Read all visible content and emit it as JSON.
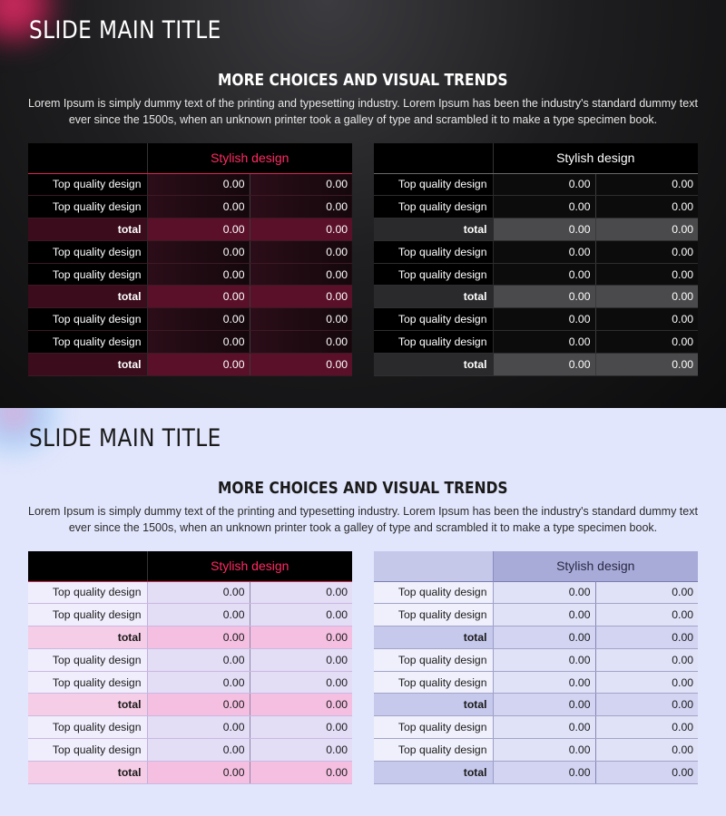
{
  "slides": [
    {
      "theme": "dark",
      "main_title": "SLIDE MAIN TITLE",
      "section_title": "MORE CHOICES AND VISUAL TRENDS",
      "body_text": "Lorem Ipsum is simply dummy text of the printing and typesetting industry. Lorem Ipsum has been the industry's standard dummy text ever since the 1500s, when an unknown printer took a galley of type and scrambled it to make a type specimen book.",
      "tables": [
        {
          "style": "pink",
          "header": "Stylish design",
          "rows": [
            {
              "label": "Top quality design",
              "v1": "0.00",
              "v2": "0.00",
              "total": false
            },
            {
              "label": "Top quality design",
              "v1": "0.00",
              "v2": "0.00",
              "total": false
            },
            {
              "label": "total",
              "v1": "0.00",
              "v2": "0.00",
              "total": true
            },
            {
              "label": "Top quality design",
              "v1": "0.00",
              "v2": "0.00",
              "total": false
            },
            {
              "label": "Top quality design",
              "v1": "0.00",
              "v2": "0.00",
              "total": false
            },
            {
              "label": "total",
              "v1": "0.00",
              "v2": "0.00",
              "total": true
            },
            {
              "label": "Top quality design",
              "v1": "0.00",
              "v2": "0.00",
              "total": false
            },
            {
              "label": "Top quality design",
              "v1": "0.00",
              "v2": "0.00",
              "total": false
            },
            {
              "label": "total",
              "v1": "0.00",
              "v2": "0.00",
              "total": true
            }
          ]
        },
        {
          "style": "gray",
          "header": "Stylish design",
          "rows": [
            {
              "label": "Top quality design",
              "v1": "0.00",
              "v2": "0.00",
              "total": false
            },
            {
              "label": "Top quality design",
              "v1": "0.00",
              "v2": "0.00",
              "total": false
            },
            {
              "label": "total",
              "v1": "0.00",
              "v2": "0.00",
              "total": true
            },
            {
              "label": "Top quality design",
              "v1": "0.00",
              "v2": "0.00",
              "total": false
            },
            {
              "label": "Top quality design",
              "v1": "0.00",
              "v2": "0.00",
              "total": false
            },
            {
              "label": "total",
              "v1": "0.00",
              "v2": "0.00",
              "total": true
            },
            {
              "label": "Top quality design",
              "v1": "0.00",
              "v2": "0.00",
              "total": false
            },
            {
              "label": "Top quality design",
              "v1": "0.00",
              "v2": "0.00",
              "total": false
            },
            {
              "label": "total",
              "v1": "0.00",
              "v2": "0.00",
              "total": true
            }
          ]
        }
      ]
    },
    {
      "theme": "light",
      "main_title": "SLIDE MAIN TITLE",
      "section_title": "MORE CHOICES AND VISUAL TRENDS",
      "body_text": "Lorem Ipsum is simply dummy text of the printing and typesetting industry. Lorem Ipsum has been the industry's standard dummy text ever since the 1500s, when an unknown printer took a galley of type and scrambled it to make a type specimen book.",
      "tables": [
        {
          "style": "pink",
          "header": "Stylish design",
          "rows": [
            {
              "label": "Top quality design",
              "v1": "0.00",
              "v2": "0.00",
              "total": false
            },
            {
              "label": "Top quality design",
              "v1": "0.00",
              "v2": "0.00",
              "total": false
            },
            {
              "label": "total",
              "v1": "0.00",
              "v2": "0.00",
              "total": true
            },
            {
              "label": "Top quality design",
              "v1": "0.00",
              "v2": "0.00",
              "total": false
            },
            {
              "label": "Top quality design",
              "v1": "0.00",
              "v2": "0.00",
              "total": false
            },
            {
              "label": "total",
              "v1": "0.00",
              "v2": "0.00",
              "total": true
            },
            {
              "label": "Top quality design",
              "v1": "0.00",
              "v2": "0.00",
              "total": false
            },
            {
              "label": "Top quality design",
              "v1": "0.00",
              "v2": "0.00",
              "total": false
            },
            {
              "label": "total",
              "v1": "0.00",
              "v2": "0.00",
              "total": true
            }
          ]
        },
        {
          "style": "blue",
          "header": "Stylish design",
          "rows": [
            {
              "label": "Top quality design",
              "v1": "0.00",
              "v2": "0.00",
              "total": false
            },
            {
              "label": "Top quality design",
              "v1": "0.00",
              "v2": "0.00",
              "total": false
            },
            {
              "label": "total",
              "v1": "0.00",
              "v2": "0.00",
              "total": true
            },
            {
              "label": "Top quality design",
              "v1": "0.00",
              "v2": "0.00",
              "total": false
            },
            {
              "label": "Top quality design",
              "v1": "0.00",
              "v2": "0.00",
              "total": false
            },
            {
              "label": "total",
              "v1": "0.00",
              "v2": "0.00",
              "total": true
            },
            {
              "label": "Top quality design",
              "v1": "0.00",
              "v2": "0.00",
              "total": false
            },
            {
              "label": "Top quality design",
              "v1": "0.00",
              "v2": "0.00",
              "total": false
            },
            {
              "label": "total",
              "v1": "0.00",
              "v2": "0.00",
              "total": true
            }
          ]
        }
      ]
    }
  ],
  "colors": {
    "accent_pink": "#ff2a62",
    "dark_background": "#111112",
    "light_background": "#e2e6fc",
    "light_blue_header": "#a8aad8"
  }
}
